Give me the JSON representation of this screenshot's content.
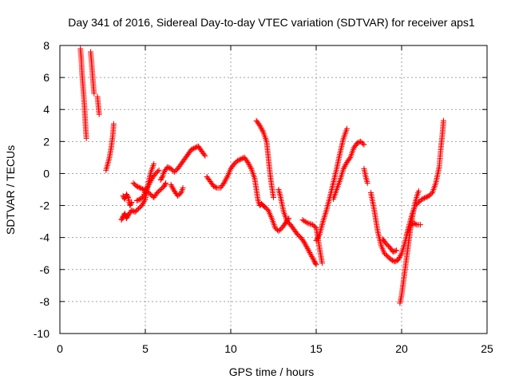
{
  "chart_data": {
    "type": "scatter",
    "title": "Day 341 of 2016, Sidereal Day-to-day VTEC variation (SDTVAR) for receiver aps1",
    "xlabel": "GPS time / hours",
    "ylabel": "SDTVAR / TECUs",
    "xlim": [
      0,
      25
    ],
    "ylim": [
      -10,
      8
    ],
    "xticks": [
      0,
      5,
      10,
      15,
      20,
      25
    ],
    "yticks": [
      -10,
      -8,
      -6,
      -4,
      -2,
      0,
      2,
      4,
      6,
      8
    ],
    "grid": true,
    "marker": "plus",
    "color": "#ff0000",
    "series": [
      {
        "name": "aps1",
        "segments": [
          [
            [
              1.2,
              7.8
            ],
            [
              1.25,
              7.2
            ],
            [
              1.3,
              6.2
            ],
            [
              1.35,
              5.5
            ],
            [
              1.4,
              4.8
            ],
            [
              1.45,
              4.0
            ],
            [
              1.5,
              3.0
            ],
            [
              1.55,
              2.2
            ]
          ],
          [
            [
              1.8,
              7.6
            ],
            [
              1.85,
              7.0
            ],
            [
              1.9,
              6.3
            ],
            [
              1.95,
              5.6
            ],
            [
              2.0,
              5.0
            ]
          ],
          [
            [
              2.2,
              4.8
            ],
            [
              2.3,
              3.7
            ]
          ],
          [
            [
              2.7,
              0.2
            ],
            [
              2.8,
              0.6
            ],
            [
              2.9,
              1.0
            ],
            [
              3.0,
              1.6
            ],
            [
              3.1,
              2.4
            ],
            [
              3.15,
              3.1
            ]
          ],
          [
            [
              3.6,
              -2.9
            ],
            [
              3.7,
              -2.7
            ],
            [
              3.8,
              -2.5
            ],
            [
              3.9,
              -2.8
            ],
            [
              4.0,
              -2.6
            ],
            [
              4.2,
              -2.3
            ],
            [
              4.4,
              -2.4
            ],
            [
              4.6,
              -2.2
            ],
            [
              4.8,
              -2.0
            ],
            [
              5.0,
              -1.6
            ],
            [
              5.1,
              -1.0
            ],
            [
              5.2,
              -0.5
            ],
            [
              5.3,
              0.0
            ],
            [
              5.4,
              0.3
            ],
            [
              5.5,
              0.6
            ]
          ],
          [
            [
              3.7,
              -1.4
            ],
            [
              3.8,
              -1.6
            ],
            [
              3.9,
              -1.3
            ],
            [
              4.0,
              -1.5
            ],
            [
              4.1,
              -2.0
            ],
            [
              4.2,
              -1.8
            ]
          ],
          [
            [
              4.3,
              -0.6
            ],
            [
              4.5,
              -0.8
            ],
            [
              4.7,
              -0.9
            ],
            [
              4.9,
              -1.0
            ],
            [
              5.1,
              -1.1
            ],
            [
              5.3,
              -1.3
            ],
            [
              5.5,
              -1.5
            ],
            [
              5.7,
              -1.2
            ],
            [
              5.9,
              -1.0
            ],
            [
              6.1,
              -0.8
            ],
            [
              6.2,
              -0.6
            ]
          ],
          [
            [
              4.5,
              -1.7
            ],
            [
              4.7,
              -1.6
            ],
            [
              4.9,
              -1.4
            ],
            [
              5.0,
              -1.1
            ],
            [
              5.2,
              -0.7
            ],
            [
              5.4,
              -0.3
            ],
            [
              5.6,
              0.0
            ],
            [
              5.8,
              0.2
            ]
          ],
          [
            [
              5.9,
              -0.4
            ],
            [
              6.0,
              -0.2
            ],
            [
              6.1,
              0.1
            ],
            [
              6.3,
              0.4
            ],
            [
              6.5,
              0.3
            ],
            [
              6.7,
              0.1
            ],
            [
              6.9,
              0.3
            ],
            [
              7.1,
              0.6
            ],
            [
              7.3,
              0.9
            ],
            [
              7.5,
              1.2
            ],
            [
              7.7,
              1.5
            ],
            [
              7.9,
              1.6
            ],
            [
              8.1,
              1.7
            ],
            [
              8.3,
              1.4
            ],
            [
              8.5,
              1.1
            ]
          ],
          [
            [
              6.5,
              -0.7
            ],
            [
              6.7,
              -1.1
            ],
            [
              6.9,
              -1.4
            ],
            [
              7.1,
              -1.2
            ],
            [
              7.2,
              -0.9
            ]
          ],
          [
            [
              8.6,
              -0.2
            ],
            [
              8.8,
              -0.5
            ],
            [
              9.0,
              -0.8
            ],
            [
              9.2,
              -0.9
            ],
            [
              9.4,
              -0.9
            ],
            [
              9.6,
              -0.6
            ],
            [
              9.8,
              -0.2
            ],
            [
              10.0,
              0.3
            ],
            [
              10.2,
              0.6
            ],
            [
              10.4,
              0.8
            ],
            [
              10.6,
              0.9
            ],
            [
              10.8,
              1.0
            ],
            [
              11.0,
              0.7
            ],
            [
              11.2,
              0.3
            ],
            [
              11.4,
              -0.3
            ],
            [
              11.5,
              -1.0
            ],
            [
              11.6,
              -1.7
            ],
            [
              11.7,
              -2.0
            ],
            [
              11.8,
              -1.9
            ],
            [
              11.9,
              -2.0
            ],
            [
              12.0,
              -2.1
            ],
            [
              12.2,
              -2.3
            ],
            [
              12.4,
              -2.8
            ],
            [
              12.6,
              -3.4
            ],
            [
              12.8,
              -3.6
            ],
            [
              13.0,
              -3.4
            ],
            [
              13.2,
              -3.1
            ],
            [
              13.4,
              -2.8
            ]
          ],
          [
            [
              11.5,
              3.3
            ],
            [
              11.7,
              3.0
            ],
            [
              11.9,
              2.6
            ],
            [
              12.1,
              2.0
            ],
            [
              12.2,
              1.0
            ],
            [
              12.3,
              0.0
            ],
            [
              12.4,
              -0.8
            ],
            [
              12.5,
              -1.5
            ]
          ],
          [
            [
              12.8,
              -1.0
            ],
            [
              12.9,
              -1.4
            ],
            [
              13.0,
              -1.9
            ],
            [
              13.1,
              -2.4
            ],
            [
              13.2,
              -2.7
            ],
            [
              13.3,
              -3.0
            ],
            [
              13.5,
              -3.2
            ],
            [
              13.7,
              -3.5
            ],
            [
              13.9,
              -3.8
            ],
            [
              14.1,
              -4.0
            ],
            [
              14.3,
              -4.3
            ],
            [
              14.5,
              -4.7
            ],
            [
              14.7,
              -5.1
            ],
            [
              14.9,
              -5.5
            ],
            [
              15.0,
              -5.7
            ]
          ],
          [
            [
              14.2,
              -2.9
            ],
            [
              14.5,
              -3.1
            ],
            [
              14.8,
              -3.2
            ],
            [
              15.0,
              -3.4
            ],
            [
              15.1,
              -4.0
            ],
            [
              15.2,
              -4.7
            ],
            [
              15.3,
              -5.3
            ],
            [
              15.35,
              -5.6
            ]
          ],
          [
            [
              15.0,
              -4.2
            ],
            [
              15.2,
              -3.8
            ],
            [
              15.4,
              -3.0
            ],
            [
              15.6,
              -2.3
            ],
            [
              15.8,
              -1.5
            ],
            [
              16.0,
              -0.6
            ],
            [
              16.2,
              0.3
            ],
            [
              16.4,
              1.3
            ],
            [
              16.6,
              2.2
            ],
            [
              16.8,
              2.8
            ]
          ],
          [
            [
              16.0,
              -1.6
            ],
            [
              16.2,
              -1.0
            ],
            [
              16.4,
              -0.4
            ],
            [
              16.6,
              0.3
            ],
            [
              16.8,
              0.7
            ],
            [
              17.0,
              1.0
            ],
            [
              17.2,
              1.6
            ],
            [
              17.4,
              1.9
            ],
            [
              17.6,
              2.0
            ],
            [
              17.8,
              1.8
            ]
          ],
          [
            [
              17.8,
              0.3
            ],
            [
              17.9,
              -0.2
            ],
            [
              18.0,
              -0.6
            ]
          ],
          [
            [
              18.2,
              -1.2
            ],
            [
              18.4,
              -2.3
            ],
            [
              18.6,
              -3.6
            ],
            [
              18.8,
              -4.5
            ],
            [
              19.0,
              -5.0
            ],
            [
              19.2,
              -5.2
            ],
            [
              19.4,
              -5.4
            ],
            [
              19.6,
              -5.5
            ],
            [
              19.8,
              -5.4
            ],
            [
              20.0,
              -5.0
            ],
            [
              20.2,
              -4.3
            ],
            [
              20.4,
              -3.4
            ],
            [
              20.6,
              -2.6
            ],
            [
              20.8,
              -2.0
            ],
            [
              21.0,
              -1.8
            ],
            [
              21.2,
              -1.6
            ],
            [
              21.4,
              -1.5
            ],
            [
              21.6,
              -1.4
            ],
            [
              21.8,
              -1.2
            ],
            [
              22.0,
              -0.6
            ],
            [
              22.2,
              0.4
            ],
            [
              22.3,
              1.6
            ],
            [
              22.4,
              2.6
            ],
            [
              22.45,
              3.3
            ]
          ],
          [
            [
              18.9,
              -4.1
            ],
            [
              19.1,
              -4.4
            ],
            [
              19.3,
              -4.6
            ],
            [
              19.5,
              -4.9
            ],
            [
              19.7,
              -4.8
            ]
          ],
          [
            [
              19.9,
              -8.1
            ],
            [
              20.0,
              -7.6
            ],
            [
              20.1,
              -6.8
            ],
            [
              20.2,
              -6.0
            ],
            [
              20.3,
              -5.2
            ],
            [
              20.4,
              -4.4
            ],
            [
              20.5,
              -3.6
            ],
            [
              20.6,
              -2.9
            ],
            [
              20.7,
              -2.3
            ],
            [
              20.8,
              -1.8
            ],
            [
              20.9,
              -1.4
            ],
            [
              21.0,
              -1.1
            ]
          ],
          [
            [
              20.3,
              -3.8
            ],
            [
              20.5,
              -3.3
            ],
            [
              20.7,
              -3.1
            ],
            [
              20.9,
              -3.2
            ],
            [
              21.1,
              -3.2
            ]
          ]
        ]
      }
    ]
  }
}
